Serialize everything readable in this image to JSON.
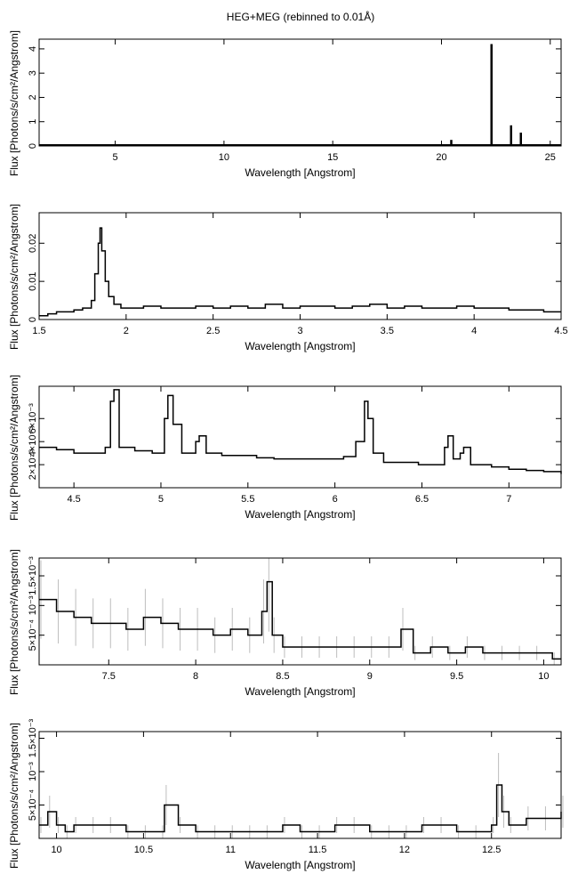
{
  "figure": {
    "title": "HEG+MEG (rebinned to 0.01Å)"
  },
  "chart_data": [
    {
      "type": "line",
      "title": "HEG+MEG (rebinned to 0.01Å)",
      "xlabel": "Wavelength [Angstrom]",
      "ylabel": "Flux [Photons/s/cm²/Angstrom]",
      "xlim": [
        1.5,
        25.5
      ],
      "ylim": [
        0,
        4.4
      ],
      "xticks": [
        5,
        10,
        15,
        20,
        25
      ],
      "yticks": [
        0,
        1,
        2,
        3,
        4
      ],
      "xtick_labels": [
        "5",
        "10",
        "15",
        "20",
        "25"
      ],
      "ytick_labels": [
        "0",
        "1",
        "2",
        "3",
        "4"
      ],
      "grid": false,
      "series": [
        {
          "style": "spikes",
          "x": [
            20.45,
            22.3,
            23.2,
            23.65
          ],
          "y": [
            0.25,
            4.2,
            0.85,
            0.55
          ]
        }
      ]
    },
    {
      "type": "line",
      "xlabel": "Wavelength [Angstrom]",
      "ylabel": "Flux [Photons/s/cm²/Angstrom]",
      "xlim": [
        1.5,
        4.5
      ],
      "ylim": [
        0,
        0.028
      ],
      "xticks": [
        1.5,
        2,
        2.5,
        3,
        3.5,
        4,
        4.5
      ],
      "yticks": [
        0,
        0.01,
        0.02
      ],
      "xtick_labels": [
        "1.5",
        "2",
        "2.5",
        "3",
        "3.5",
        "4",
        "4.5"
      ],
      "ytick_labels": [
        "0",
        "0.01",
        "0.02"
      ],
      "grid": false,
      "series": [
        {
          "style": "step",
          "x": [
            1.5,
            1.55,
            1.6,
            1.65,
            1.7,
            1.75,
            1.8,
            1.82,
            1.84,
            1.85,
            1.86,
            1.88,
            1.9,
            1.93,
            1.97,
            2.0,
            2.1,
            2.2,
            2.3,
            2.4,
            2.5,
            2.6,
            2.7,
            2.8,
            2.9,
            3.0,
            3.1,
            3.2,
            3.3,
            3.4,
            3.5,
            3.6,
            3.7,
            3.8,
            3.9,
            4.0,
            4.1,
            4.2,
            4.3,
            4.4,
            4.5
          ],
          "y": [
            0.001,
            0.0015,
            0.002,
            0.002,
            0.0025,
            0.003,
            0.005,
            0.012,
            0.02,
            0.024,
            0.018,
            0.01,
            0.006,
            0.004,
            0.003,
            0.003,
            0.0035,
            0.003,
            0.003,
            0.0035,
            0.003,
            0.0035,
            0.003,
            0.004,
            0.003,
            0.0035,
            0.0035,
            0.003,
            0.0035,
            0.004,
            0.003,
            0.0035,
            0.003,
            0.003,
            0.0035,
            0.003,
            0.003,
            0.0025,
            0.0025,
            0.002,
            0.002
          ]
        }
      ]
    },
    {
      "type": "line",
      "xlabel": "Wavelength [Angstrom]",
      "ylabel": "Flux [Photons/s/cm²/Angstrom]",
      "xlim": [
        4.3,
        7.3
      ],
      "ylim": [
        0,
        0.0088
      ],
      "xticks": [
        4.5,
        5,
        5.5,
        6,
        6.5,
        7
      ],
      "yticks": [
        0.002,
        0.004,
        0.006
      ],
      "xtick_labels": [
        "4.5",
        "5",
        "5.5",
        "6",
        "6.5",
        "7"
      ],
      "ytick_labels": [
        "2×10⁻³",
        "4×10⁻³",
        "6×10⁻³"
      ],
      "grid": false,
      "series": [
        {
          "style": "step",
          "x": [
            4.3,
            4.4,
            4.5,
            4.6,
            4.68,
            4.71,
            4.73,
            4.76,
            4.85,
            4.95,
            5.02,
            5.04,
            5.07,
            5.12,
            5.2,
            5.22,
            5.26,
            5.35,
            5.45,
            5.55,
            5.65,
            5.75,
            5.85,
            5.95,
            6.05,
            6.12,
            6.17,
            6.19,
            6.22,
            6.28,
            6.38,
            6.48,
            6.58,
            6.63,
            6.65,
            6.68,
            6.72,
            6.74,
            6.78,
            6.9,
            7.0,
            7.1,
            7.2,
            7.3
          ],
          "y": [
            0.0035,
            0.0033,
            0.003,
            0.003,
            0.0035,
            0.0075,
            0.0085,
            0.0035,
            0.0032,
            0.003,
            0.006,
            0.008,
            0.0055,
            0.003,
            0.004,
            0.0045,
            0.003,
            0.0028,
            0.0028,
            0.0026,
            0.0025,
            0.0025,
            0.0025,
            0.0025,
            0.0027,
            0.004,
            0.0075,
            0.006,
            0.003,
            0.0022,
            0.0022,
            0.002,
            0.002,
            0.0035,
            0.0045,
            0.0025,
            0.003,
            0.0035,
            0.002,
            0.0018,
            0.0016,
            0.0015,
            0.0014,
            0.0012
          ]
        }
      ]
    },
    {
      "type": "line",
      "xlabel": "Wavelength [Angstrom]",
      "ylabel": "Flux [Photons/s/cm²/Angstrom]",
      "xlim": [
        7.1,
        10.1
      ],
      "ylim": [
        0,
        0.0018
      ],
      "xticks": [
        7.5,
        8,
        8.5,
        9,
        9.5,
        10
      ],
      "yticks": [
        0.0005,
        0.001,
        0.0015
      ],
      "xtick_labels": [
        "7.5",
        "8",
        "8.5",
        "9",
        "9.5",
        "10"
      ],
      "ytick_labels": [
        "5×10⁻⁴",
        "10⁻³",
        "1.5×10⁻³"
      ],
      "grid": false,
      "series": [
        {
          "style": "step_errorbars",
          "x": [
            7.1,
            7.2,
            7.3,
            7.4,
            7.5,
            7.6,
            7.7,
            7.8,
            7.9,
            8.0,
            8.1,
            8.2,
            8.3,
            8.38,
            8.41,
            8.44,
            8.5,
            8.6,
            8.7,
            8.8,
            8.9,
            9.0,
            9.1,
            9.18,
            9.25,
            9.35,
            9.45,
            9.55,
            9.65,
            9.75,
            9.85,
            9.95,
            10.05
          ],
          "y": [
            0.0011,
            0.0009,
            0.0008,
            0.0007,
            0.0007,
            0.0006,
            0.0008,
            0.0007,
            0.0006,
            0.0006,
            0.0005,
            0.0006,
            0.0005,
            0.0009,
            0.0014,
            0.0005,
            0.0003,
            0.0003,
            0.0003,
            0.0003,
            0.0003,
            0.0003,
            0.0003,
            0.0006,
            0.0002,
            0.0003,
            0.0002,
            0.0003,
            0.0002,
            0.0002,
            0.0002,
            0.0002,
            0.0001
          ]
        }
      ]
    },
    {
      "type": "line",
      "xlabel": "Wavelength [Angstrom]",
      "ylabel": "Flux [Photons/s/cm²/Angstrom]",
      "xlim": [
        9.9,
        12.9
      ],
      "ylim": [
        0,
        0.0016
      ],
      "xticks": [
        10,
        10.5,
        11,
        11.5,
        12,
        12.5
      ],
      "yticks": [
        0.0005,
        0.001,
        0.0015
      ],
      "xtick_labels": [
        "10",
        "10.5",
        "11",
        "11.5",
        "12",
        "12.5"
      ],
      "ytick_labels": [
        "5×10⁻⁴",
        "10⁻³",
        "1.5×10⁻³"
      ],
      "grid": false,
      "series": [
        {
          "style": "step_errorbars",
          "x": [
            9.9,
            9.95,
            10.0,
            10.05,
            10.1,
            10.2,
            10.3,
            10.4,
            10.5,
            10.6,
            10.62,
            10.7,
            10.8,
            10.9,
            11.0,
            11.1,
            11.2,
            11.3,
            11.4,
            11.5,
            11.6,
            11.7,
            11.8,
            11.9,
            12.0,
            12.1,
            12.2,
            12.3,
            12.4,
            12.5,
            12.53,
            12.56,
            12.6,
            12.7,
            12.8,
            12.9
          ],
          "y": [
            0.0002,
            0.0004,
            0.0002,
            0.0001,
            0.0002,
            0.0002,
            0.0002,
            0.0001,
            0.0001,
            0.0001,
            0.0005,
            0.0002,
            0.0001,
            0.0001,
            0.0001,
            0.0001,
            0.0001,
            0.0002,
            0.0001,
            0.0001,
            0.0002,
            0.0002,
            0.0001,
            0.0001,
            0.0001,
            0.0002,
            0.0002,
            0.0001,
            0.0001,
            0.0002,
            0.0008,
            0.0004,
            0.0002,
            0.0003,
            0.0003,
            0.0004
          ]
        }
      ]
    }
  ]
}
